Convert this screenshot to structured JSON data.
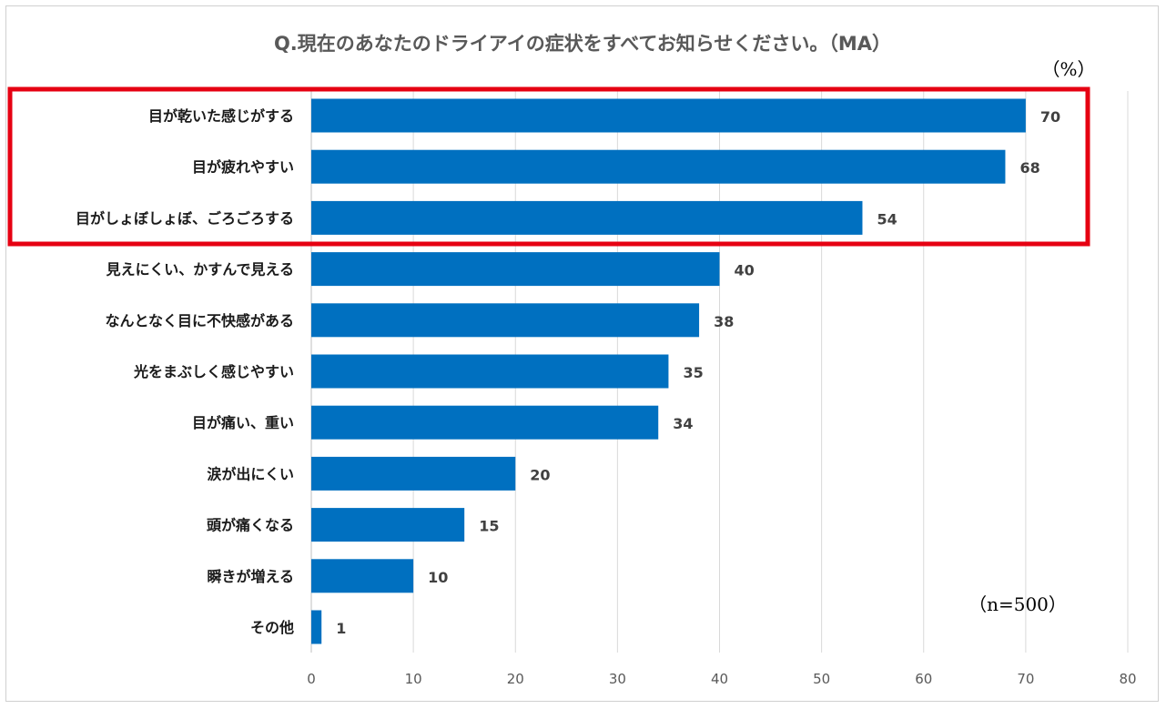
{
  "colors": {
    "bar": "#0070c0",
    "highlight": "#e60012",
    "grid": "#d9d9d9",
    "axis": "#bfbfbf"
  },
  "chart_data": {
    "type": "bar",
    "orientation": "horizontal",
    "title": "Q.現在のあなたのドライアイの症状をすべてお知らせください。（MA）",
    "unit_label": "（%）",
    "sample_note": "（n=500）",
    "categories": [
      "目が乾いた感じがする",
      "目が疲れやすい",
      "目がしょぼしょぼ、ごろごろする",
      "見えにくい、かすんで見える",
      "なんとなく目に不快感がある",
      "光をまぶしく感じやすい",
      "目が痛い、重い",
      "涙が出にくい",
      "頭が痛くなる",
      "瞬きが増える",
      "その他"
    ],
    "values": [
      70,
      68,
      54,
      40,
      38,
      35,
      34,
      20,
      15,
      10,
      1
    ],
    "xlim": [
      0,
      80
    ],
    "xticks": [
      0,
      10,
      20,
      30,
      40,
      50,
      60,
      70,
      80
    ],
    "highlighted_categories": [
      "目が乾いた感じがする",
      "目が疲れやすい",
      "目がしょぼしょぼ、ごろごろする"
    ],
    "grid": true
  }
}
